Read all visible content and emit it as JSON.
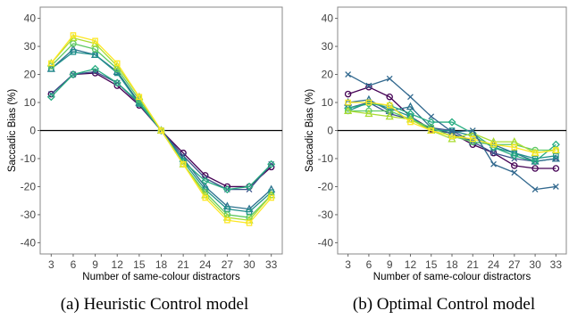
{
  "chart_data": [
    {
      "type": "line",
      "caption": "(a) Heuristic Control model",
      "xlabel": "Number of same-colour distractors",
      "ylabel": "Saccadic Bias (%)",
      "xlim": [
        1.5,
        34.5
      ],
      "ylim": [
        -44,
        44
      ],
      "x_ticks": [
        3,
        6,
        9,
        12,
        15,
        18,
        21,
        24,
        27,
        30,
        33
      ],
      "y_ticks": [
        -40,
        -30,
        -20,
        -10,
        0,
        10,
        20,
        30,
        40
      ],
      "hline": 0,
      "grid": false,
      "legend": "none",
      "x": [
        3,
        6,
        9,
        12,
        15,
        18,
        21,
        24,
        27,
        30,
        33
      ],
      "series": [
        {
          "color": "#440154",
          "marker": "circle",
          "values": [
            13,
            20,
            20.5,
            16,
            9,
            0,
            -8,
            -16,
            -20,
            -20,
            -13
          ]
        },
        {
          "color": "#3b528b",
          "marker": "cross",
          "values": [
            13,
            20,
            21,
            17,
            9.5,
            0,
            -9,
            -17,
            -21,
            -21,
            -12
          ]
        },
        {
          "color": "#2c728e",
          "marker": "triangle",
          "values": [
            22,
            29,
            27,
            21,
            10,
            0,
            -10,
            -20,
            -27,
            -28,
            -21
          ]
        },
        {
          "color": "#21918c",
          "marker": "square",
          "values": [
            22,
            28,
            27,
            20.5,
            9.5,
            0,
            -11,
            -21,
            -28,
            -29,
            -22
          ]
        },
        {
          "color": "#27ad81",
          "marker": "diamond",
          "values": [
            12,
            20,
            22,
            17,
            10,
            0,
            -11,
            -18,
            -21,
            -20,
            -12
          ]
        },
        {
          "color": "#5ec962",
          "marker": "circle",
          "values": [
            23,
            31,
            29,
            22,
            11,
            0,
            -12,
            -22,
            -30,
            -31,
            -23
          ]
        },
        {
          "color": "#aadc32",
          "marker": "triangle",
          "values": [
            24,
            33,
            31,
            23,
            12,
            0,
            -12,
            -23,
            -31,
            -32,
            -23
          ]
        },
        {
          "color": "#fde725",
          "marker": "square",
          "values": [
            24,
            34,
            32,
            24,
            12,
            0,
            -12,
            -24,
            -32,
            -33,
            -24
          ]
        }
      ]
    },
    {
      "type": "line",
      "caption": "(b) Optimal Control model",
      "xlabel": "Number of same-colour distractors",
      "ylabel": "Saccadic Bias (%)",
      "xlim": [
        1.5,
        34.5
      ],
      "ylim": [
        -44,
        44
      ],
      "x_ticks": [
        3,
        6,
        9,
        12,
        15,
        18,
        21,
        24,
        27,
        30,
        33
      ],
      "y_ticks": [
        -40,
        -30,
        -20,
        -10,
        0,
        10,
        20,
        30,
        40
      ],
      "hline": 0,
      "grid": false,
      "legend": "none",
      "x": [
        3,
        6,
        9,
        12,
        15,
        18,
        21,
        24,
        27,
        30,
        33
      ],
      "series": [
        {
          "color": "#440154",
          "marker": "circle",
          "values": [
            13,
            15.5,
            12,
            5,
            0.5,
            -1,
            -5,
            -8,
            -12.5,
            -13.5,
            -13.5
          ]
        },
        {
          "color": "#3b528b",
          "marker": "cross",
          "values": [
            8,
            10,
            6,
            4,
            1,
            0,
            -4,
            -8,
            -10,
            -11,
            -10
          ]
        },
        {
          "color": "#2c728e",
          "marker": "triangle",
          "values": [
            10,
            11,
            7,
            8.5,
            1,
            -1,
            -4,
            -5,
            -8,
            -11,
            -10
          ]
        },
        {
          "color": "#21918c",
          "marker": "square",
          "values": [
            7,
            10,
            8,
            5,
            0,
            0,
            -2,
            -6,
            -8,
            -10,
            -9
          ]
        },
        {
          "color": "#27ad81",
          "marker": "diamond",
          "values": [
            8,
            9.5,
            9,
            6,
            3,
            3,
            -1,
            -6,
            -9,
            -11,
            -5
          ]
        },
        {
          "color": "#5ec962",
          "marker": "circle",
          "values": [
            7,
            7,
            7,
            4,
            1,
            -2,
            -4,
            -5,
            -5,
            -7,
            -7
          ]
        },
        {
          "color": "#aadc32",
          "marker": "triangle",
          "values": [
            7,
            6,
            5,
            4,
            0,
            -3,
            -1,
            -4,
            -4,
            -8,
            -7
          ]
        },
        {
          "color": "#fde725",
          "marker": "square",
          "values": [
            10,
            10,
            9,
            3,
            0,
            -2,
            -3,
            -5,
            -6,
            -8,
            -7
          ]
        },
        {
          "color": "#31688e",
          "marker": "cross",
          "values": [
            20,
            16,
            18.5,
            12,
            5,
            -0.5,
            0,
            -12,
            -15,
            -21,
            -20
          ]
        }
      ]
    }
  ]
}
